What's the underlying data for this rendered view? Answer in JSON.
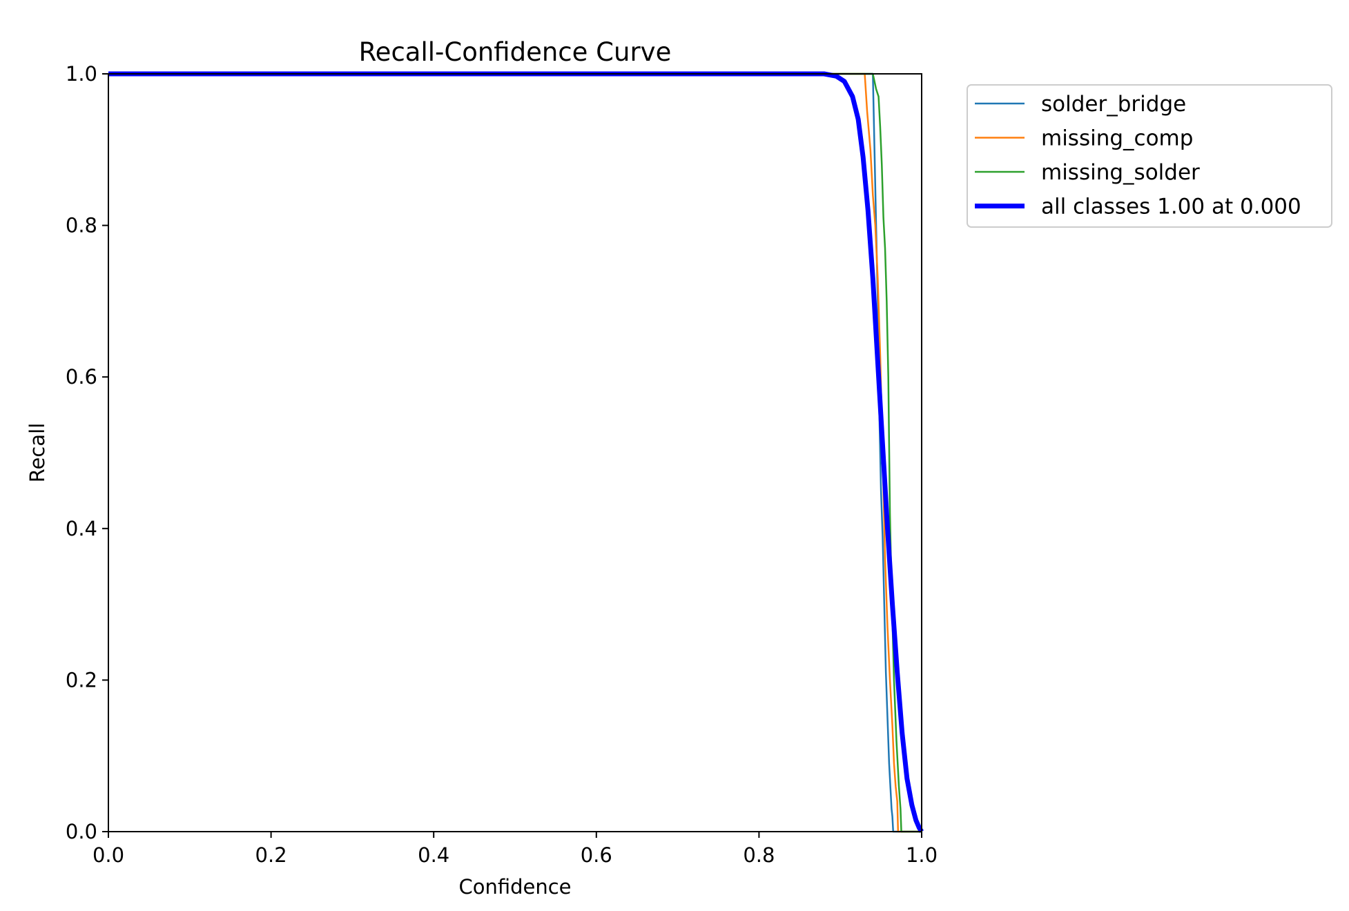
{
  "chart_data": {
    "type": "line",
    "title": "Recall-Confidence Curve",
    "xlabel": "Confidence",
    "ylabel": "Recall",
    "xlim": [
      0,
      1
    ],
    "ylim": [
      0,
      1
    ],
    "xticks": [
      "0.0",
      "0.2",
      "0.4",
      "0.6",
      "0.8",
      "1.0"
    ],
    "yticks": [
      "0.0",
      "0.2",
      "0.4",
      "0.6",
      "0.8",
      "1.0"
    ],
    "grid": false,
    "legend_position": "outside-top-right",
    "series": [
      {
        "name": "solder_bridge",
        "color": "#1f77b4",
        "width": "thin",
        "x": [
          0,
          0.9,
          0.94,
          0.943,
          0.946,
          0.948,
          0.95,
          0.952,
          0.954,
          0.956,
          0.958,
          0.96,
          0.962,
          0.963,
          0.964,
          0.965,
          1.0
        ],
        "y": [
          1,
          1,
          1,
          0.85,
          0.7,
          0.55,
          0.45,
          0.39,
          0.3,
          0.21,
          0.15,
          0.09,
          0.05,
          0.03,
          0.02,
          0,
          0
        ]
      },
      {
        "name": "missing_comp",
        "color": "#ff7f0e",
        "width": "thin",
        "x": [
          0,
          0.9,
          0.93,
          0.933,
          0.937,
          0.94,
          0.943,
          0.946,
          0.949,
          0.952,
          0.955,
          0.958,
          0.961,
          0.964,
          0.966,
          0.968,
          0.97,
          0.971,
          1.0
        ],
        "y": [
          1,
          1,
          1,
          0.95,
          0.9,
          0.84,
          0.8,
          0.73,
          0.63,
          0.5,
          0.36,
          0.27,
          0.2,
          0.14,
          0.09,
          0.06,
          0.04,
          0,
          0
        ]
      },
      {
        "name": "missing_solder",
        "color": "#2ca02c",
        "width": "thin",
        "x": [
          0,
          0.9,
          0.94,
          0.944,
          0.947,
          0.949,
          0.951,
          0.953,
          0.955,
          0.957,
          0.959,
          0.961,
          0.963,
          0.966,
          0.969,
          0.972,
          0.974,
          0.975,
          1.0
        ],
        "y": [
          1,
          1,
          1,
          0.98,
          0.97,
          0.93,
          0.88,
          0.81,
          0.77,
          0.7,
          0.6,
          0.42,
          0.32,
          0.2,
          0.12,
          0.06,
          0.03,
          0,
          0
        ]
      },
      {
        "name": "all classes 1.00 at 0.000",
        "color": "#0000ff",
        "width": "thick",
        "x": [
          0,
          0.88,
          0.895,
          0.905,
          0.915,
          0.922,
          0.928,
          0.934,
          0.94,
          0.946,
          0.952,
          0.958,
          0.964,
          0.97,
          0.976,
          0.982,
          0.988,
          0.993,
          0.997,
          1.0
        ],
        "y": [
          1,
          1,
          0.997,
          0.99,
          0.97,
          0.94,
          0.89,
          0.82,
          0.73,
          0.62,
          0.51,
          0.4,
          0.3,
          0.21,
          0.13,
          0.07,
          0.035,
          0.015,
          0.005,
          0
        ]
      }
    ]
  }
}
